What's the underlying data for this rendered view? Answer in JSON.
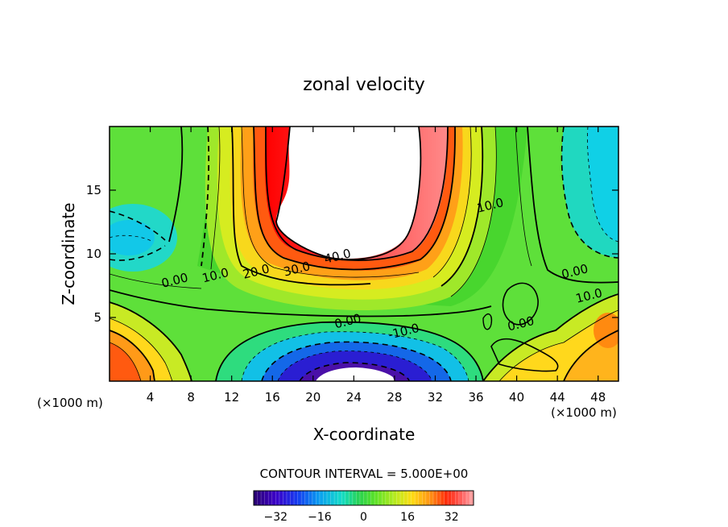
{
  "chart_data": {
    "type": "heatmap",
    "title": "zonal velocity",
    "xlabel": "X-coordinate",
    "ylabel": "Z-coordinate",
    "x_unit_label": "(×1000 m)",
    "z_unit_label": "(×1000 m)",
    "xlim": [
      0,
      50
    ],
    "ylim": [
      0,
      20
    ],
    "x_ticks": [
      4,
      8,
      12,
      16,
      20,
      24,
      28,
      32,
      36,
      40,
      44,
      48
    ],
    "y_ticks": [
      5,
      10,
      15
    ],
    "contour_interval_label": "CONTOUR INTERVAL = 5.000E+00",
    "colorbar": {
      "range": [
        -40,
        40
      ],
      "ticks": [
        -32,
        -16,
        0,
        16,
        32
      ]
    },
    "contour_labels": [
      {
        "text": "40.0",
        "x": 22.5,
        "z": 9.5
      },
      {
        "text": "30.0",
        "x": 18.5,
        "z": 8.5
      },
      {
        "text": "20.0",
        "x": 14.5,
        "z": 8.3
      },
      {
        "text": "10.0",
        "x": 10.5,
        "z": 8.0
      },
      {
        "text": "0.00",
        "x": 6.5,
        "z": 7.6
      },
      {
        "text": "0.00",
        "x": 23.5,
        "z": 4.4
      },
      {
        "text": "-10.0",
        "x": 29.0,
        "z": 3.6
      },
      {
        "text": "10.0",
        "x": 37.5,
        "z": 13.5
      },
      {
        "text": "0.00",
        "x": 45.8,
        "z": 8.3
      },
      {
        "text": "10.0",
        "x": 47.2,
        "z": 6.4
      },
      {
        "text": "0.00",
        "x": 40.5,
        "z": 4.2
      }
    ]
  }
}
